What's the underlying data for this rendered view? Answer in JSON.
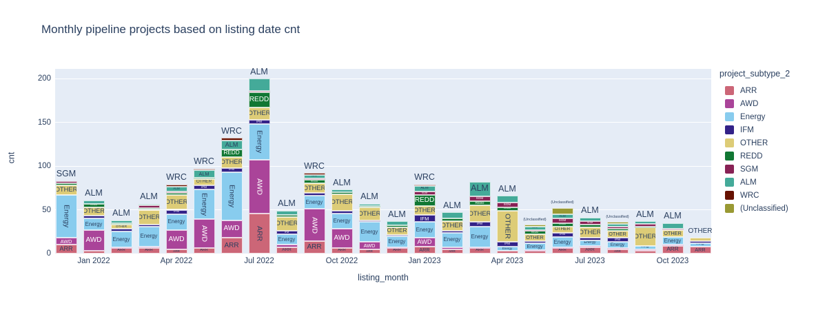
{
  "title": "Monthly pipeline projects based on listing date cnt",
  "x_axis": {
    "title": "listing_month",
    "tick_labels": [
      "Jan 2022",
      "Apr 2022",
      "Jul 2022",
      "Oct 2022",
      "Jan 2023",
      "Apr 2023",
      "Jul 2023",
      "Oct 2023"
    ],
    "tick_month_indices": [
      1,
      4,
      7,
      10,
      13,
      16,
      19,
      22
    ]
  },
  "y_axis": {
    "title": "cnt",
    "ticks": [
      0,
      50,
      100,
      150,
      200
    ]
  },
  "legend": {
    "title": "project_subtype_2",
    "items": [
      {
        "label": "ARR",
        "color": "#CC6677"
      },
      {
        "label": "AWD",
        "color": "#AA4499"
      },
      {
        "label": "Energy",
        "color": "#88CCEE"
      },
      {
        "label": "IFM",
        "color": "#332288"
      },
      {
        "label": "OTHER",
        "color": "#DDCC77"
      },
      {
        "label": "REDD",
        "color": "#117733"
      },
      {
        "label": "SGM",
        "color": "#882255"
      },
      {
        "label": "ALM",
        "color": "#44AA99"
      },
      {
        "label": "WRC",
        "color": "#661100"
      },
      {
        "label": "(Unclassified)",
        "color": "#999933"
      }
    ]
  },
  "chart_data": {
    "type": "bar",
    "stacked": true,
    "title": "Monthly pipeline projects based on listing date cnt",
    "xlabel": "listing_month",
    "ylabel": "cnt",
    "ylim": [
      0,
      200
    ],
    "plot_bg": "#E5ECF6",
    "grid": "horizontal-white",
    "legend_position": "right",
    "categories": [
      "Dec 2021",
      "Jan 2022",
      "Feb 2022",
      "Mar 2022",
      "Apr 2022",
      "May 2022",
      "Jun 2022",
      "Jul 2022",
      "Aug 2022",
      "Sep 2022",
      "Oct 2022",
      "Nov 2022",
      "Dec 2022",
      "Jan 2023",
      "Feb 2023",
      "Mar 2023",
      "Apr 2023",
      "May 2023",
      "Jun 2023",
      "Jul 2023",
      "Aug 2023",
      "Sep 2023",
      "Oct 2023",
      "Nov 2023"
    ],
    "series": [
      {
        "name": "ARR",
        "color": "#CC6677",
        "values": [
          10,
          3,
          6,
          6,
          5,
          6,
          18,
          46,
          7,
          14,
          6,
          5,
          6,
          8,
          5,
          6,
          3,
          3,
          6,
          7,
          5,
          3,
          9,
          8
        ]
      },
      {
        "name": "AWD",
        "color": "#AA4499",
        "values": [
          8,
          24,
          1,
          2,
          22,
          33,
          20,
          61,
          3,
          37,
          22,
          8,
          1,
          10,
          2,
          1,
          0,
          1,
          1,
          2,
          1,
          2,
          1,
          0
        ]
      },
      {
        "name": "Energy",
        "color": "#88CCEE",
        "values": [
          49,
          13,
          18,
          23,
          18,
          34,
          55,
          41,
          12,
          15,
          18,
          23,
          13,
          18,
          17,
          24,
          5,
          8,
          12,
          6,
          7,
          4,
          9,
          4
        ]
      },
      {
        "name": "IFM",
        "color": "#332288",
        "values": [
          0,
          3,
          3,
          2,
          5,
          5,
          5,
          5,
          4,
          3,
          3,
          2,
          1,
          8,
          2,
          5,
          5,
          2,
          5,
          3,
          5,
          0,
          0,
          2
        ]
      },
      {
        "name": "OTHER",
        "color": "#DDCC77",
        "values": [
          11,
          10,
          5,
          17,
          17,
          7,
          12,
          14,
          16,
          11,
          19,
          15,
          9,
          10,
          11,
          19,
          36,
          8,
          7,
          12,
          8,
          21,
          8,
          4
        ]
      },
      {
        "name": "REDD",
        "color": "#117733",
        "values": [
          2,
          4,
          2,
          2,
          2,
          2,
          9,
          17,
          2,
          4,
          2,
          1,
          2,
          13,
          3,
          5,
          4,
          4,
          4,
          3,
          2,
          1,
          0,
          0
        ]
      },
      {
        "name": "SGM",
        "color": "#882255",
        "values": [
          3,
          0,
          0,
          3,
          2,
          0,
          0,
          2,
          0,
          2,
          0,
          0,
          0,
          4,
          0,
          5,
          5,
          1,
          5,
          4,
          3,
          3,
          1,
          0
        ]
      },
      {
        "name": "ALM",
        "color": "#44AA99",
        "values": [
          0,
          4,
          3,
          2,
          5,
          8,
          10,
          14,
          5,
          4,
          3,
          3,
          5,
          6,
          7,
          17,
          8,
          4,
          5,
          4,
          3,
          3,
          7,
          0
        ]
      },
      {
        "name": "WRC",
        "color": "#661100",
        "values": [
          0,
          0,
          0,
          0,
          3,
          2,
          3,
          0,
          0,
          2,
          0,
          0,
          0,
          2,
          0,
          0,
          0,
          0,
          0,
          0,
          0,
          0,
          0,
          0
        ]
      },
      {
        "name": "(Unclassified)",
        "color": "#999933",
        "values": [
          0,
          0,
          0,
          0,
          0,
          0,
          0,
          0,
          0,
          0,
          0,
          0,
          0,
          0,
          0,
          0,
          0,
          2,
          7,
          0,
          2,
          0,
          0,
          0
        ]
      }
    ],
    "top_labels": [
      "SGM",
      "ALM",
      "ALM",
      "ALM",
      "WRC",
      "WRC",
      "WRC",
      "ALM",
      "ALM",
      "WRC",
      "ALM",
      "ALM",
      "ALM",
      "WRC",
      "ALM",
      "ALM",
      "ALM",
      "(Unclassified)",
      "(Unclassified)",
      "ALM",
      "(Unclassified)",
      "ALM",
      "ALM",
      "OTHER"
    ]
  }
}
